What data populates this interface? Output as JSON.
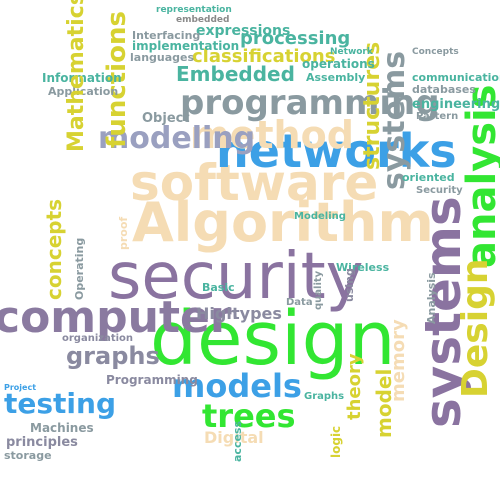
{
  "words": [
    {
      "text": "security",
      "color": "#8a73a0"
    },
    {
      "text": "design",
      "color": "#32e632"
    },
    {
      "text": "Algorithm",
      "color": "#f5dcb4"
    },
    {
      "text": "software",
      "color": "#f5dcb4"
    },
    {
      "text": "networks",
      "color": "#3ca0e6"
    },
    {
      "text": "systems",
      "color": "#8a73a0"
    },
    {
      "text": "computer",
      "color": "#8a7aa0"
    },
    {
      "text": "programming",
      "color": "#8a9aa0"
    },
    {
      "text": "method",
      "color": "#f5dcb4"
    },
    {
      "text": "analysis",
      "color": "#32e632"
    },
    {
      "text": "Design",
      "color": "#d7d232"
    },
    {
      "text": "models",
      "color": "#3ca0e6"
    },
    {
      "text": "trees",
      "color": "#32e632"
    },
    {
      "text": "modeling",
      "color": "#9aa0c0"
    },
    {
      "text": "testing",
      "color": "#3ca0e6"
    },
    {
      "text": "graphs",
      "color": "#8a8aa0"
    },
    {
      "text": "Embedded",
      "color": "#4ab4a0"
    },
    {
      "text": "functions",
      "color": "#d7d232"
    },
    {
      "text": "structures",
      "color": "#d7d232"
    },
    {
      "text": "systems",
      "color": "#8a9aa0"
    },
    {
      "text": "classifications",
      "color": "#d7d232"
    },
    {
      "text": "processing",
      "color": "#4ab4a0"
    },
    {
      "text": "expressions",
      "color": "#4ab4a0"
    },
    {
      "text": "implementation",
      "color": "#4ab4a0"
    },
    {
      "text": "Interfacing",
      "color": "#8a9aa0"
    },
    {
      "text": "representation",
      "color": "#4ab4a0"
    },
    {
      "text": "embedded",
      "color": "#8a8a8a"
    },
    {
      "text": "operations",
      "color": "#4ab4a0"
    },
    {
      "text": "languages",
      "color": "#8a9aa0"
    },
    {
      "text": "Assembly",
      "color": "#4ab4a0"
    },
    {
      "text": "Network",
      "color": "#4ab4a0"
    },
    {
      "text": "Concepts",
      "color": "#8a9aa0"
    },
    {
      "text": "communication",
      "color": "#4ab4a0"
    },
    {
      "text": "databases",
      "color": "#8a9aa0"
    },
    {
      "text": "engineering",
      "color": "#4ab4a0"
    },
    {
      "text": "Pattern",
      "color": "#8a9aa0"
    },
    {
      "text": "Security",
      "color": "#8a9aa0"
    },
    {
      "text": "oriented",
      "color": "#4ab4a0"
    },
    {
      "text": "Information",
      "color": "#4ab4a0"
    },
    {
      "text": "Application",
      "color": "#8a9aa0"
    },
    {
      "text": "Mathematics",
      "color": "#d7d232"
    },
    {
      "text": "Object",
      "color": "#8a9aa0"
    },
    {
      "text": "concepts",
      "color": "#d7d232"
    },
    {
      "text": "types",
      "color": "#8a8aa0"
    },
    {
      "text": "High",
      "color": "#8a8aa0"
    },
    {
      "text": "Programming",
      "color": "#8a8aa0"
    },
    {
      "text": "principles",
      "color": "#8a8aa0"
    },
    {
      "text": "Machines",
      "color": "#8a9aa0"
    },
    {
      "text": "storage",
      "color": "#8a9aa0"
    },
    {
      "text": "organization",
      "color": "#8a8aa0"
    },
    {
      "text": "Digital",
      "color": "#f5dcb4"
    },
    {
      "text": "theory",
      "color": "#d7d232"
    },
    {
      "text": "model",
      "color": "#d7d232"
    },
    {
      "text": "memory",
      "color": "#f5dcb4"
    },
    {
      "text": "Wireless",
      "color": "#4ab4a0"
    },
    {
      "text": "quality",
      "color": "#8a9aa0"
    },
    {
      "text": "using",
      "color": "#8a8aa0"
    },
    {
      "text": "Analysis",
      "color": "#8a9aa0"
    },
    {
      "text": "Operating",
      "color": "#8a9aa0"
    },
    {
      "text": "access",
      "color": "#4ab4a0"
    },
    {
      "text": "Basic",
      "color": "#4ab4a0"
    },
    {
      "text": "logic",
      "color": "#d7d232"
    },
    {
      "text": "Graphs",
      "color": "#4ab4a0"
    },
    {
      "text": "Project",
      "color": "#3ca0e6"
    },
    {
      "text": "proof",
      "color": "#f5dcb4"
    },
    {
      "text": "Data",
      "color": "#8a9aa0"
    },
    {
      "text": "Modeling",
      "color": "#4ab4a0"
    }
  ]
}
